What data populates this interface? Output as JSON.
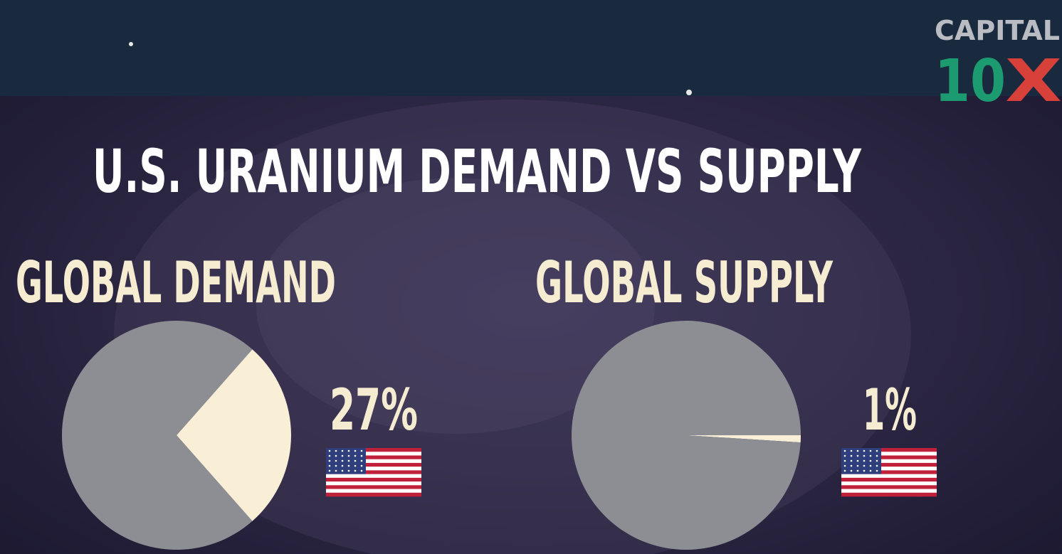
{
  "title": "U.S. URANIUM DEMAND VS SUPPLY",
  "logo": {
    "top": "CAPITAL",
    "number": "10",
    "letter": "X"
  },
  "chart_data": [
    {
      "type": "pie",
      "title": "GLOBAL DEMAND",
      "values": [
        27,
        73
      ],
      "value_labels": [
        "27%",
        null
      ],
      "colors": [
        "#f8efd6",
        "#8d8e93"
      ]
    },
    {
      "type": "pie",
      "title": "GLOBAL SUPPLY",
      "values": [
        1,
        99
      ],
      "value_labels": [
        "1%",
        null
      ],
      "colors": [
        "#f8efd6",
        "#8d8e93"
      ]
    }
  ]
}
